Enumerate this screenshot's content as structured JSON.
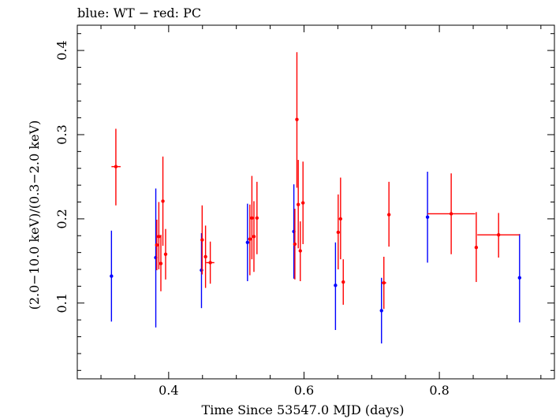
{
  "chart_data": {
    "type": "scatter",
    "title": "blue: WT − red: PC",
    "xlabel": "Time Since 53547.0 MJD (days)",
    "ylabel": "(2.0−10.0 keV)/(0.3−2.0 keV)",
    "xlim": [
      0.265,
      0.97
    ],
    "ylim": [
      0.01,
      0.43
    ],
    "xticks": [
      0.4,
      0.6,
      0.8
    ],
    "xtick_labels": [
      "0.4",
      "0.6",
      "0.8"
    ],
    "yticks": [
      0.1,
      0.2,
      0.3,
      0.4
    ],
    "ytick_labels": [
      "0.1",
      "0.2",
      "0.3",
      "0.4"
    ],
    "grid": false,
    "series": [
      {
        "name": "WT",
        "color": "#0000ff",
        "points": [
          {
            "x": 0.3155,
            "y": 0.132,
            "ylo": 0.078,
            "yhi": 0.186,
            "xlo": 0.3155,
            "xhi": 0.3155
          },
          {
            "x": 0.381,
            "y": 0.154,
            "ylo": 0.071,
            "yhi": 0.236,
            "xlo": 0.381,
            "xhi": 0.381
          },
          {
            "x": 0.4485,
            "y": 0.139,
            "ylo": 0.094,
            "yhi": 0.183,
            "xlo": 0.4485,
            "xhi": 0.4485
          },
          {
            "x": 0.5165,
            "y": 0.172,
            "ylo": 0.126,
            "yhi": 0.218,
            "xlo": 0.5165,
            "xhi": 0.5165
          },
          {
            "x": 0.585,
            "y": 0.185,
            "ylo": 0.129,
            "yhi": 0.241,
            "xlo": 0.585,
            "xhi": 0.585
          },
          {
            "x": 0.6465,
            "y": 0.121,
            "ylo": 0.068,
            "yhi": 0.172,
            "xlo": 0.6465,
            "xhi": 0.6465
          },
          {
            "x": 0.7145,
            "y": 0.091,
            "ylo": 0.052,
            "yhi": 0.13,
            "xlo": 0.7145,
            "xhi": 0.7145
          },
          {
            "x": 0.7825,
            "y": 0.202,
            "ylo": 0.148,
            "yhi": 0.256,
            "xlo": 0.7825,
            "xhi": 0.7825
          },
          {
            "x": 0.9185,
            "y": 0.13,
            "ylo": 0.077,
            "yhi": 0.182,
            "xlo": 0.9185,
            "xhi": 0.9185
          }
        ]
      },
      {
        "name": "PC",
        "color": "#ff0000",
        "points": [
          {
            "x": 0.322,
            "y": 0.262,
            "ylo": 0.216,
            "yhi": 0.307,
            "xlo": 0.3155,
            "xhi": 0.329
          },
          {
            "x": 0.3825,
            "y": 0.169,
            "ylo": 0.139,
            "yhi": 0.199,
            "xlo": 0.382,
            "xhi": 0.383
          },
          {
            "x": 0.3855,
            "y": 0.179,
            "ylo": 0.14,
            "yhi": 0.22,
            "xlo": 0.385,
            "xhi": 0.386
          },
          {
            "x": 0.3885,
            "y": 0.147,
            "ylo": 0.114,
            "yhi": 0.181,
            "xlo": 0.388,
            "xhi": 0.389
          },
          {
            "x": 0.3915,
            "y": 0.221,
            "ylo": 0.168,
            "yhi": 0.274,
            "xlo": 0.391,
            "xhi": 0.392
          },
          {
            "x": 0.3955,
            "y": 0.158,
            "ylo": 0.128,
            "yhi": 0.188,
            "xlo": 0.395,
            "xhi": 0.396
          },
          {
            "x": 0.4495,
            "y": 0.175,
            "ylo": 0.134,
            "yhi": 0.216,
            "xlo": 0.4485,
            "xhi": 0.4505
          },
          {
            "x": 0.4545,
            "y": 0.155,
            "ylo": 0.118,
            "yhi": 0.192,
            "xlo": 0.4535,
            "xhi": 0.4555
          },
          {
            "x": 0.4615,
            "y": 0.148,
            "ylo": 0.123,
            "yhi": 0.173,
            "xlo": 0.4555,
            "xhi": 0.4675
          },
          {
            "x": 0.52,
            "y": 0.176,
            "ylo": 0.133,
            "yhi": 0.217,
            "xlo": 0.519,
            "xhi": 0.521
          },
          {
            "x": 0.523,
            "y": 0.201,
            "ylo": 0.152,
            "yhi": 0.251,
            "xlo": 0.522,
            "xhi": 0.524
          },
          {
            "x": 0.526,
            "y": 0.179,
            "ylo": 0.137,
            "yhi": 0.221,
            "xlo": 0.525,
            "xhi": 0.527
          },
          {
            "x": 0.5305,
            "y": 0.201,
            "ylo": 0.158,
            "yhi": 0.244,
            "xlo": 0.5285,
            "xhi": 0.5325
          },
          {
            "x": 0.5865,
            "y": 0.17,
            "ylo": 0.128,
            "yhi": 0.212,
            "xlo": 0.586,
            "xhi": 0.587
          },
          {
            "x": 0.5895,
            "y": 0.318,
            "ylo": 0.237,
            "yhi": 0.398,
            "xlo": 0.589,
            "xhi": 0.59
          },
          {
            "x": 0.5915,
            "y": 0.217,
            "ylo": 0.165,
            "yhi": 0.27,
            "xlo": 0.591,
            "xhi": 0.592
          },
          {
            "x": 0.5945,
            "y": 0.162,
            "ylo": 0.126,
            "yhi": 0.197,
            "xlo": 0.594,
            "xhi": 0.595
          },
          {
            "x": 0.5985,
            "y": 0.219,
            "ylo": 0.17,
            "yhi": 0.268,
            "xlo": 0.598,
            "xhi": 0.599
          },
          {
            "x": 0.6505,
            "y": 0.184,
            "ylo": 0.14,
            "yhi": 0.229,
            "xlo": 0.65,
            "xhi": 0.651
          },
          {
            "x": 0.654,
            "y": 0.2,
            "ylo": 0.152,
            "yhi": 0.249,
            "xlo": 0.6535,
            "xhi": 0.6545
          },
          {
            "x": 0.658,
            "y": 0.125,
            "ylo": 0.098,
            "yhi": 0.152,
            "xlo": 0.656,
            "xhi": 0.66
          },
          {
            "x": 0.718,
            "y": 0.124,
            "ylo": 0.093,
            "yhi": 0.155,
            "xlo": 0.7145,
            "xhi": 0.7215
          },
          {
            "x": 0.7255,
            "y": 0.205,
            "ylo": 0.167,
            "yhi": 0.244,
            "xlo": 0.725,
            "xhi": 0.726
          },
          {
            "x": 0.8175,
            "y": 0.206,
            "ylo": 0.158,
            "yhi": 0.254,
            "xlo": 0.7825,
            "xhi": 0.853
          },
          {
            "x": 0.8545,
            "y": 0.166,
            "ylo": 0.125,
            "yhi": 0.208,
            "xlo": 0.853,
            "xhi": 0.856
          },
          {
            "x": 0.8875,
            "y": 0.181,
            "ylo": 0.154,
            "yhi": 0.207,
            "xlo": 0.856,
            "xhi": 0.9185
          }
        ]
      }
    ]
  }
}
